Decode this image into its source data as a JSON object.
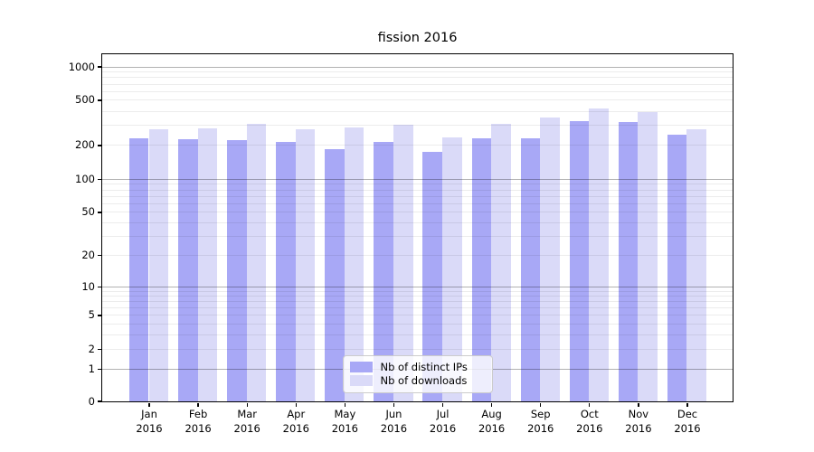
{
  "title": "fission 2016",
  "colors": {
    "distinct_ips": "#a8a8f6",
    "downloads": "#dadaf8",
    "grid_major": "rgba(0,0,0,0.30)",
    "grid_minor": "rgba(0,0,0,0.075)",
    "axis": "#000000"
  },
  "legend": {
    "items": [
      {
        "label": "Nb of distinct IPs",
        "color_key": "distinct_ips"
      },
      {
        "label": "Nb of downloads",
        "color_key": "downloads"
      }
    ]
  },
  "chart_data": {
    "type": "bar",
    "title": "fission 2016",
    "categories": [
      "Jan 2016",
      "Feb 2016",
      "Mar 2016",
      "Apr 2016",
      "May 2016",
      "Jun 2016",
      "Jul 2016",
      "Aug 2016",
      "Sep 2016",
      "Oct 2016",
      "Nov 2016",
      "Dec 2016"
    ],
    "series": [
      {
        "name": "Nb of distinct IPs",
        "color_key": "distinct_ips",
        "values": [
          230,
          227,
          222,
          212,
          185,
          212,
          174,
          228,
          228,
          327,
          318,
          246
        ]
      },
      {
        "name": "Nb of downloads",
        "color_key": "downloads",
        "values": [
          274,
          282,
          307,
          275,
          285,
          302,
          233,
          310,
          349,
          422,
          390,
          278
        ]
      }
    ],
    "xlabel": "",
    "ylabel": "",
    "yscale": "symlog",
    "yticks": [
      0,
      1,
      2,
      5,
      10,
      20,
      50,
      100,
      200,
      500,
      1000
    ],
    "ylim": [
      0,
      1300
    ],
    "grid": true,
    "grid_minor_values": [
      2,
      3,
      4,
      5,
      6,
      7,
      8,
      9,
      20,
      30,
      40,
      50,
      60,
      70,
      80,
      90,
      200,
      300,
      400,
      500,
      600,
      700,
      800,
      900
    ],
    "grid_major_values": [
      1,
      10,
      100,
      1000
    ],
    "legend_position": "lower center"
  }
}
